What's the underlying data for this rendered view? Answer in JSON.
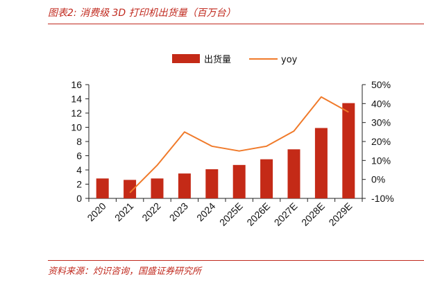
{
  "header": {
    "title": "图表2:  消费级 3D 打印机出货量（百万台）"
  },
  "footer": {
    "source": "资料来源：灼识咨询，国盛证券研究所"
  },
  "colors": {
    "bar": "#c42a17",
    "line": "#f07a2a",
    "accent": "#c0291e"
  },
  "chart_data": {
    "type": "bar",
    "categories": [
      "2020",
      "2021",
      "2022",
      "2023",
      "2024",
      "2025E",
      "2026E",
      "2027E",
      "2028E",
      "2029E"
    ],
    "series": [
      {
        "name": "出货量",
        "type": "bar",
        "axis": "left",
        "values": [
          2.8,
          2.6,
          2.8,
          3.5,
          4.1,
          4.7,
          5.5,
          6.9,
          9.9,
          13.4
        ]
      },
      {
        "name": "yoy",
        "type": "line",
        "axis": "right",
        "values": [
          null,
          -7,
          7.5,
          25,
          17.5,
          15,
          17.5,
          25.5,
          43.5,
          35.5
        ]
      }
    ],
    "y_left": {
      "min": 0,
      "max": 16,
      "ticks": [
        "0",
        "2",
        "4",
        "6",
        "8",
        "10",
        "12",
        "14",
        "16"
      ]
    },
    "y_right": {
      "min": -10,
      "max": 50,
      "ticks": [
        "-10%",
        "0%",
        "10%",
        "20%",
        "30%",
        "40%",
        "50%"
      ]
    },
    "legend_position": "top-center",
    "grid": false
  }
}
